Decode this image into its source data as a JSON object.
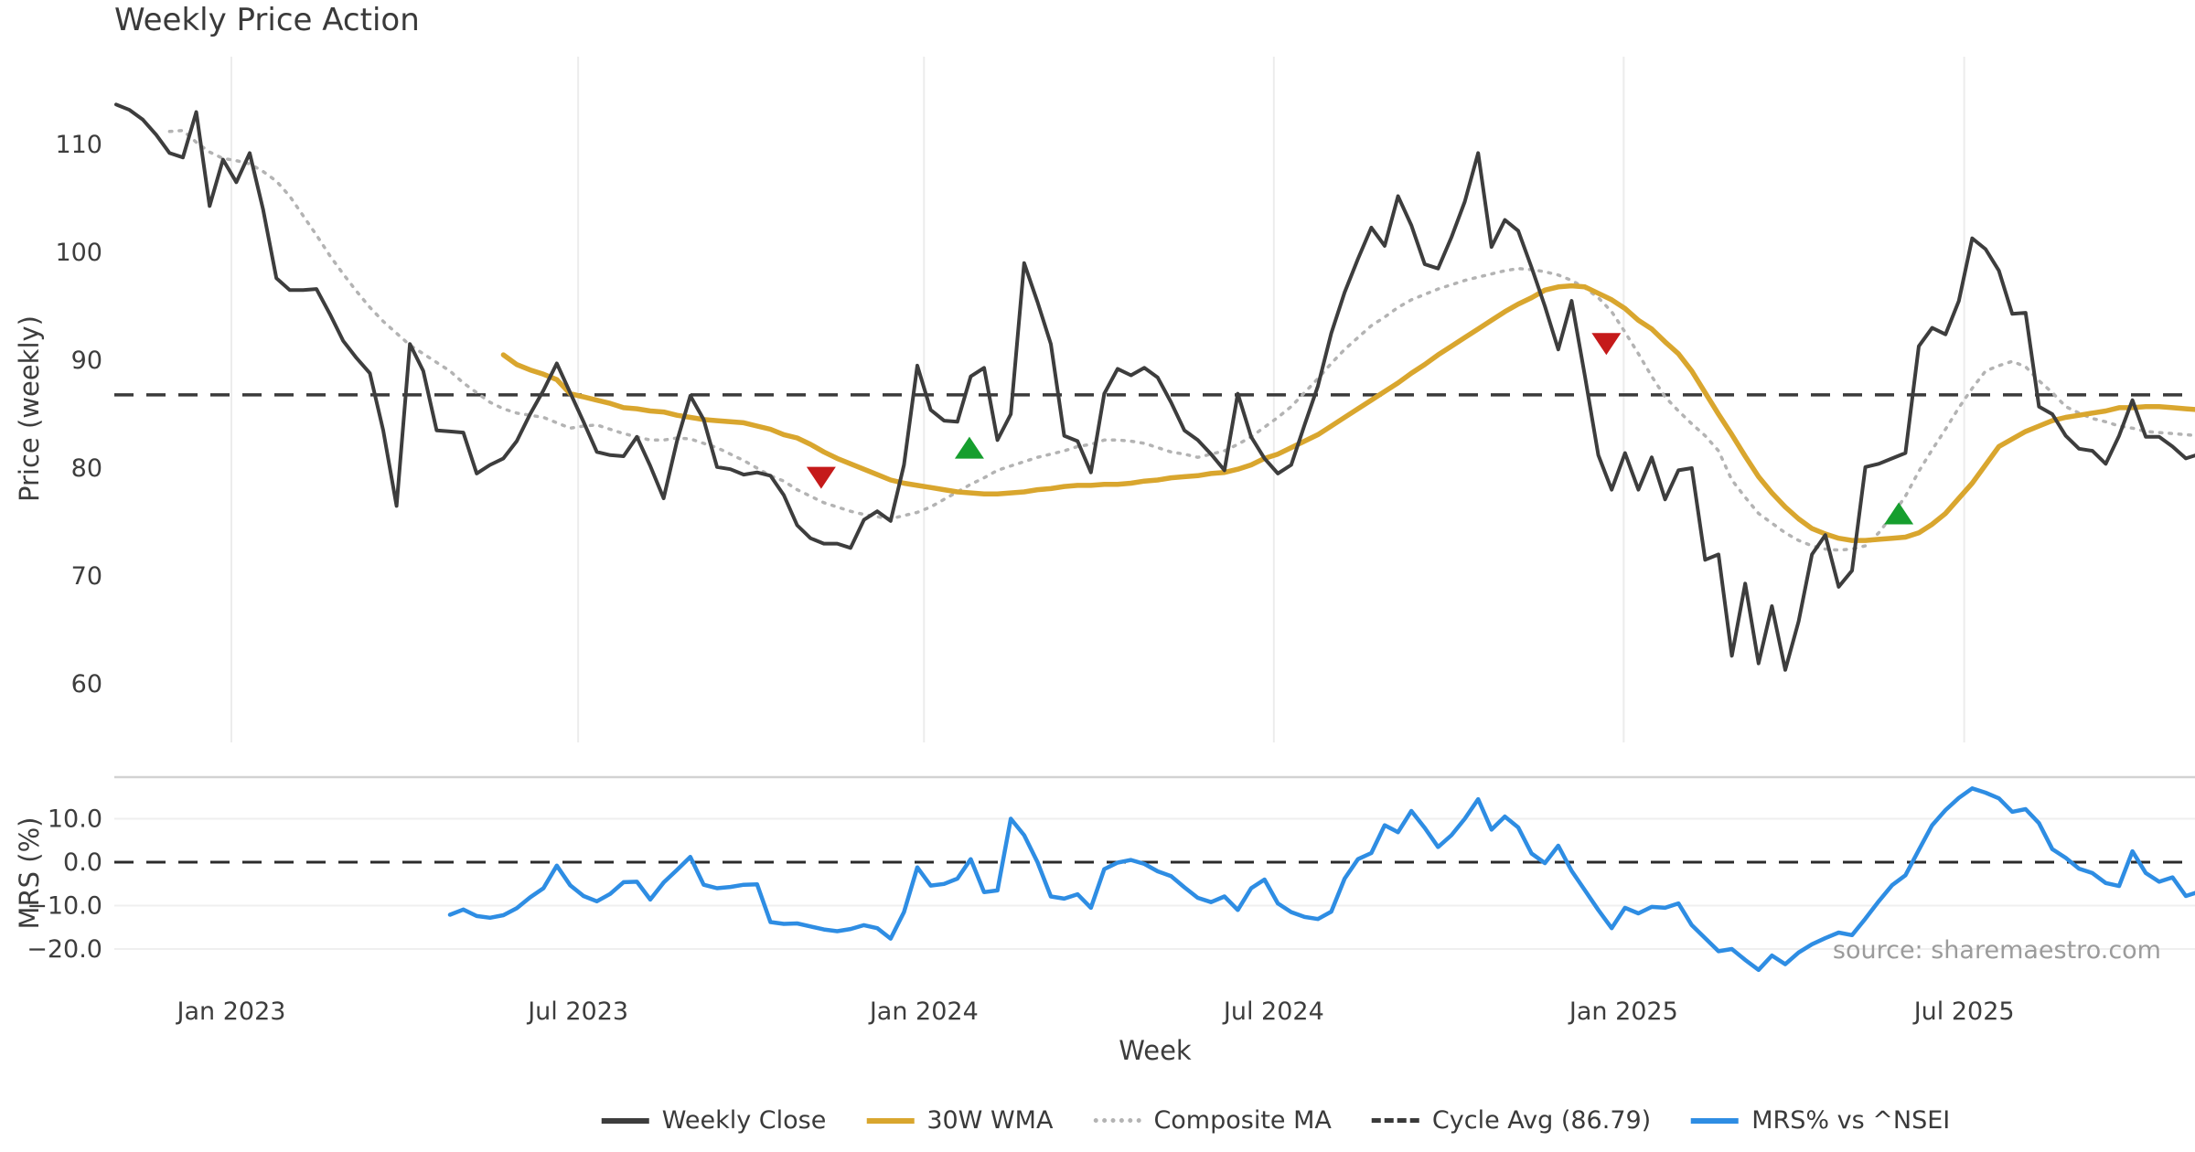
{
  "title": "Weekly Price Action",
  "source": "source: sharemaestro.com",
  "colors": {
    "weekly_close": "#3d3d3d",
    "wma_30w": "#d9a62e",
    "composite_ma": "#b3b3b3",
    "cycle_avg": "#3a3a3a",
    "mrs_line": "#2e8de3",
    "buy_marker": "#169e2e",
    "sell_marker": "#c51a1a",
    "gridline": "#ececec",
    "panel_spine": "#d2d2d2",
    "tick_text": "#3d3d3d",
    "source_text": "#9b9b9b",
    "background": "#ffffff"
  },
  "chart_data": {
    "type": "line",
    "title": "Weekly Price Action",
    "xlabel": "Week",
    "grid": "vertical-on-price-panel, horizontal-on-mrs-panel",
    "legend_position": "bottom-center",
    "x_axis": {
      "label": "Week",
      "ticks": [
        {
          "label": "Jan 2023",
          "week": 8.63
        },
        {
          "label": "Jul 2023",
          "week": 34.6
        },
        {
          "label": "Jan 2024",
          "week": 60.5
        },
        {
          "label": "Jul 2024",
          "week": 86.7
        },
        {
          "label": "Jan 2025",
          "week": 112.9
        },
        {
          "label": "Jul 2025",
          "week": 138.4
        }
      ]
    },
    "price_axis": {
      "label": "Price (weekly)",
      "ticks": [
        110,
        100,
        90,
        80,
        70,
        60
      ],
      "ylim": [
        57.5,
        118
      ]
    },
    "mrs_axis": {
      "label": "MRS (%)",
      "ticks": [
        {
          "v": 10,
          "label": "10.0"
        },
        {
          "v": 0,
          "label": "0.0"
        },
        {
          "v": -10,
          "label": "−10.0"
        },
        {
          "v": -20,
          "label": "−20.0"
        }
      ],
      "ylim": [
        -26,
        20
      ]
    },
    "cycle_avg_value": 86.79,
    "series": [
      {
        "name": "Weekly Close",
        "panel": "price",
        "start_week": 0,
        "values": [
          113.7,
          113.2,
          112.3,
          110.9,
          109.2,
          108.8,
          113.0,
          104.3,
          108.6,
          106.5,
          109.2,
          104.0,
          97.6,
          96.5,
          96.5,
          96.6,
          94.3,
          91.8,
          90.2,
          88.8,
          83.5,
          76.5,
          91.5,
          89.0,
          83.5,
          83.4,
          83.3,
          79.5,
          80.3,
          80.9,
          82.5,
          85.0,
          87.2,
          89.7,
          87.0,
          84.3,
          81.5,
          81.2,
          81.1,
          82.9,
          80.2,
          77.2,
          82.5,
          86.7,
          84.5,
          80.1,
          79.9,
          79.4,
          79.6,
          79.3,
          77.5,
          74.7,
          73.5,
          73.0,
          73.0,
          72.6,
          75.2,
          76.0,
          75.1,
          80.3,
          89.5,
          85.4,
          84.4,
          84.3,
          88.5,
          89.3,
          82.6,
          85.0,
          99.0,
          95.4,
          91.5,
          83.0,
          82.5,
          79.6,
          86.9,
          89.2,
          88.6,
          89.3,
          88.4,
          86.1,
          83.5,
          82.6,
          81.3,
          79.8,
          86.9,
          82.9,
          80.9,
          79.5,
          80.3,
          84.0,
          87.6,
          92.5,
          96.3,
          99.4,
          102.3,
          100.6,
          105.2,
          102.5,
          98.9,
          98.5,
          101.4,
          104.7,
          109.2,
          100.5,
          103.0,
          102.0,
          98.6,
          95.0,
          91.0,
          95.5,
          88.5,
          81.2,
          78.0,
          81.4,
          78.0,
          81.0,
          77.1,
          79.8,
          80.0,
          71.5,
          72.0,
          62.6,
          69.3,
          61.9,
          67.2,
          61.3,
          65.8,
          72.0,
          73.8,
          69.0,
          70.5,
          80.1,
          80.4,
          80.9,
          81.4,
          91.3,
          93.0,
          92.4,
          95.5,
          101.3,
          100.3,
          98.3,
          94.3,
          94.4,
          85.7,
          85.0,
          83.0,
          81.8,
          81.6,
          80.4,
          83.0,
          86.3,
          82.9,
          82.9,
          82.0,
          80.9,
          81.3
        ]
      },
      {
        "name": "30W WMA",
        "panel": "price",
        "start_week": 29,
        "values": [
          90.5,
          89.6,
          89.1,
          88.7,
          88.2,
          86.9,
          86.6,
          86.3,
          86.0,
          85.6,
          85.5,
          85.3,
          85.2,
          84.9,
          84.7,
          84.5,
          84.4,
          84.3,
          84.2,
          83.9,
          83.6,
          83.1,
          82.8,
          82.2,
          81.5,
          80.9,
          80.4,
          79.9,
          79.4,
          78.9,
          78.6,
          78.4,
          78.2,
          78.0,
          77.8,
          77.7,
          77.6,
          77.6,
          77.7,
          77.8,
          78.0,
          78.1,
          78.3,
          78.4,
          78.4,
          78.5,
          78.5,
          78.6,
          78.8,
          78.9,
          79.1,
          79.2,
          79.3,
          79.5,
          79.6,
          79.9,
          80.3,
          80.9,
          81.3,
          81.9,
          82.5,
          83.1,
          83.9,
          84.7,
          85.5,
          86.3,
          87.1,
          87.9,
          88.8,
          89.6,
          90.5,
          91.3,
          92.1,
          92.9,
          93.7,
          94.5,
          95.2,
          95.8,
          96.5,
          96.8,
          96.9,
          96.8,
          96.2,
          95.6,
          94.8,
          93.7,
          92.9,
          91.7,
          90.6,
          89.0,
          87.0,
          85.0,
          83.1,
          81.1,
          79.2,
          77.7,
          76.4,
          75.3,
          74.4,
          73.9,
          73.5,
          73.3,
          73.3,
          73.4,
          73.5,
          73.6,
          74.0,
          74.8,
          75.8,
          77.2,
          78.6,
          80.3,
          82.0,
          82.7,
          83.4,
          83.9,
          84.4,
          84.7,
          84.9,
          85.1,
          85.3,
          85.6,
          85.6,
          85.7,
          85.7,
          85.6,
          85.5,
          85.4
        ]
      },
      {
        "name": "Composite MA",
        "panel": "price",
        "start_week": 4,
        "values": [
          111.2,
          111.3,
          110.2,
          109.3,
          108.7,
          108.5,
          108.2,
          107.5,
          106.6,
          105.2,
          103.4,
          101.6,
          99.7,
          98.0,
          96.4,
          94.9,
          93.6,
          92.5,
          91.4,
          90.6,
          89.8,
          89.0,
          87.9,
          87.0,
          86.1,
          85.5,
          85.1,
          84.9,
          84.7,
          84.2,
          83.7,
          83.9,
          84.0,
          83.6,
          83.2,
          82.9,
          82.6,
          82.6,
          82.8,
          82.7,
          82.3,
          81.9,
          81.3,
          80.7,
          80.0,
          79.3,
          78.8,
          78.0,
          77.4,
          76.8,
          76.4,
          76.0,
          75.7,
          75.5,
          75.3,
          75.6,
          75.9,
          76.4,
          77.1,
          77.8,
          78.5,
          79.1,
          79.8,
          80.2,
          80.6,
          81.0,
          81.3,
          81.6,
          82.0,
          82.2,
          82.6,
          82.6,
          82.5,
          82.3,
          81.9,
          81.5,
          81.3,
          81.0,
          81.3,
          81.6,
          82.2,
          82.9,
          83.8,
          84.7,
          85.7,
          87.0,
          88.3,
          89.7,
          91.0,
          92.1,
          93.2,
          94.0,
          94.9,
          95.6,
          96.1,
          96.6,
          97.0,
          97.4,
          97.7,
          98.0,
          98.3,
          98.5,
          98.4,
          98.2,
          97.9,
          97.4,
          96.7,
          95.8,
          94.5,
          92.6,
          90.6,
          88.5,
          86.6,
          85.3,
          84.1,
          83.0,
          81.6,
          78.9,
          77.3,
          75.8,
          74.9,
          74.0,
          73.3,
          72.8,
          72.5,
          72.4,
          72.5,
          72.8,
          74.0,
          75.6,
          77.4,
          79.7,
          81.7,
          83.6,
          85.6,
          87.4,
          89.0,
          89.5,
          89.9,
          89.4,
          88.1,
          87.0,
          85.7,
          85.1,
          84.6,
          84.3,
          83.9,
          83.7,
          83.4,
          83.3,
          83.2,
          83.1,
          83.0
        ]
      },
      {
        "name": "MRS% vs ^NSEI",
        "panel": "mrs",
        "start_week": 25,
        "values": [
          -12.1,
          -10.9,
          -12.4,
          -12.8,
          -12.2,
          -10.6,
          -8.1,
          -6.0,
          -0.8,
          -5.3,
          -7.8,
          -9.0,
          -7.3,
          -4.6,
          -4.5,
          -8.6,
          -4.7,
          -1.8,
          1.2,
          -5.2,
          -6.0,
          -5.7,
          -5.2,
          -5.1,
          -13.8,
          -14.2,
          -14.1,
          -14.8,
          -15.5,
          -15.9,
          -15.4,
          -14.5,
          -15.2,
          -17.6,
          -11.5,
          -1.2,
          -5.4,
          -5.0,
          -3.8,
          0.7,
          -6.9,
          -6.5,
          10.0,
          6.2,
          0.0,
          -7.9,
          -8.4,
          -7.4,
          -10.5,
          -1.6,
          -0.1,
          0.5,
          -0.4,
          -2.1,
          -3.2,
          -5.8,
          -8.2,
          -9.2,
          -7.9,
          -11.0,
          -6.0,
          -4.0,
          -9.5,
          -11.5,
          -12.6,
          -13.1,
          -11.4,
          -3.8,
          0.7,
          2.1,
          8.5,
          6.9,
          11.8,
          7.9,
          3.5,
          6.2,
          10.0,
          14.5,
          7.5,
          10.5,
          8.0,
          2.0,
          -0.2,
          3.8,
          -2.0,
          -6.5,
          -11.0,
          -15.2,
          -10.5,
          -11.8,
          -10.3,
          -10.5,
          -9.5,
          -14.5,
          -17.5,
          -20.5,
          -20.0,
          -22.5,
          -24.8,
          -21.5,
          -23.5,
          -20.8,
          -18.9,
          -17.5,
          -16.2,
          -16.8,
          -13.0,
          -9.0,
          -5.3,
          -3.0,
          2.8,
          8.5,
          12.0,
          14.8,
          17.0,
          16.0,
          14.7,
          11.6,
          12.2,
          9.0,
          3.0,
          1.0,
          -1.5,
          -2.5,
          -4.8,
          -5.5,
          2.5,
          -2.5,
          -4.5,
          -3.5,
          -7.8,
          -6.8
        ]
      }
    ],
    "markers": [
      {
        "week": 52.8,
        "price": 79.1,
        "type": "sell"
      },
      {
        "week": 63.9,
        "price": 81.9,
        "type": "buy"
      },
      {
        "week": 111.6,
        "price": 91.5,
        "type": "sell"
      },
      {
        "week": 133.5,
        "price": 75.8,
        "type": "buy"
      }
    ],
    "legend": [
      {
        "label": "Weekly Close",
        "swatch": "solid-dark"
      },
      {
        "label": "30W WMA",
        "swatch": "solid-gold"
      },
      {
        "label": "Composite MA",
        "swatch": "dotted-gray"
      },
      {
        "label": "Cycle Avg (86.79)",
        "swatch": "dashed-dark"
      },
      {
        "label": "MRS% vs ^NSEI",
        "swatch": "solid-blue"
      }
    ]
  }
}
